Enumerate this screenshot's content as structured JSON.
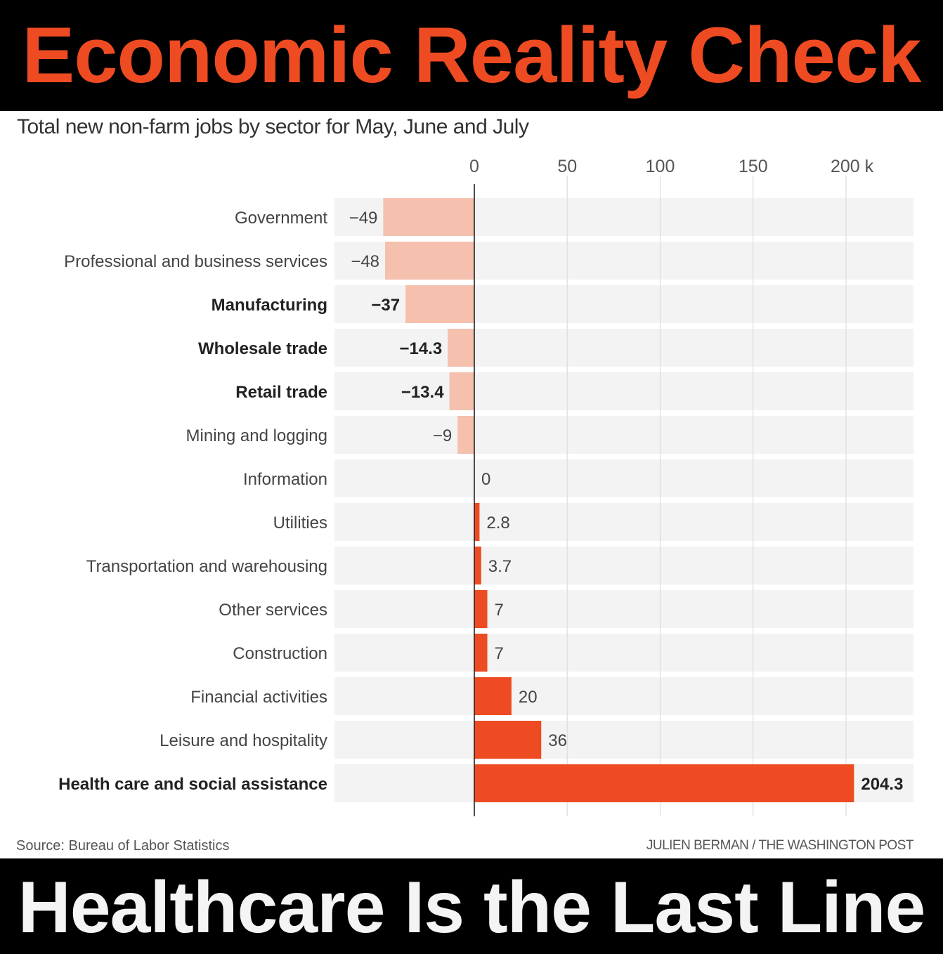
{
  "header": {
    "title": "Economic Reality Check",
    "color": "#EE4B22"
  },
  "footer_banner": {
    "title": "Healthcare Is the Last Line",
    "color": "#F4F4F4"
  },
  "source": "Source: Bureau of Labor Statistics",
  "credit": "JULIEN BERMAN / THE WASHINGTON POST",
  "chart_data": {
    "type": "bar",
    "orientation": "horizontal",
    "title": "Total new non-farm jobs by sector for May, June and July",
    "xlabel": "",
    "ylabel": "",
    "xlim": [
      -60,
      236
    ],
    "grid": true,
    "ticks": [
      {
        "value": 0,
        "label": "0"
      },
      {
        "value": 50,
        "label": "50"
      },
      {
        "value": 100,
        "label": "100"
      },
      {
        "value": 150,
        "label": "150"
      },
      {
        "value": 200,
        "label": "200 k"
      }
    ],
    "colors": {
      "negative": "#F5C0AE",
      "positive": "#EE4B22",
      "track": "#F3F3F3",
      "grid": "#DDDDDD",
      "axis": "#222222"
    },
    "categories": [
      "Government",
      "Professional and business services",
      "Manufacturing",
      "Wholesale trade",
      "Retail trade",
      "Mining and logging",
      "Information",
      "Utilities",
      "Transportation and warehousing",
      "Other services",
      "Construction",
      "Financial activities",
      "Leisure and hospitality",
      "Health care and social assistance"
    ],
    "values": [
      -49,
      -48,
      -37,
      -14.3,
      -13.4,
      -9,
      0,
      2.8,
      3.7,
      7,
      7,
      20,
      36,
      204.3
    ],
    "value_labels": [
      "−49",
      "−48",
      "−37",
      "−14.3",
      "−13.4",
      "−9",
      "0",
      "2.8",
      "3.7",
      "7",
      "7",
      "20",
      "36",
      "204.3"
    ],
    "emphasized": [
      false,
      false,
      true,
      true,
      true,
      false,
      false,
      false,
      false,
      false,
      false,
      false,
      false,
      true
    ]
  }
}
